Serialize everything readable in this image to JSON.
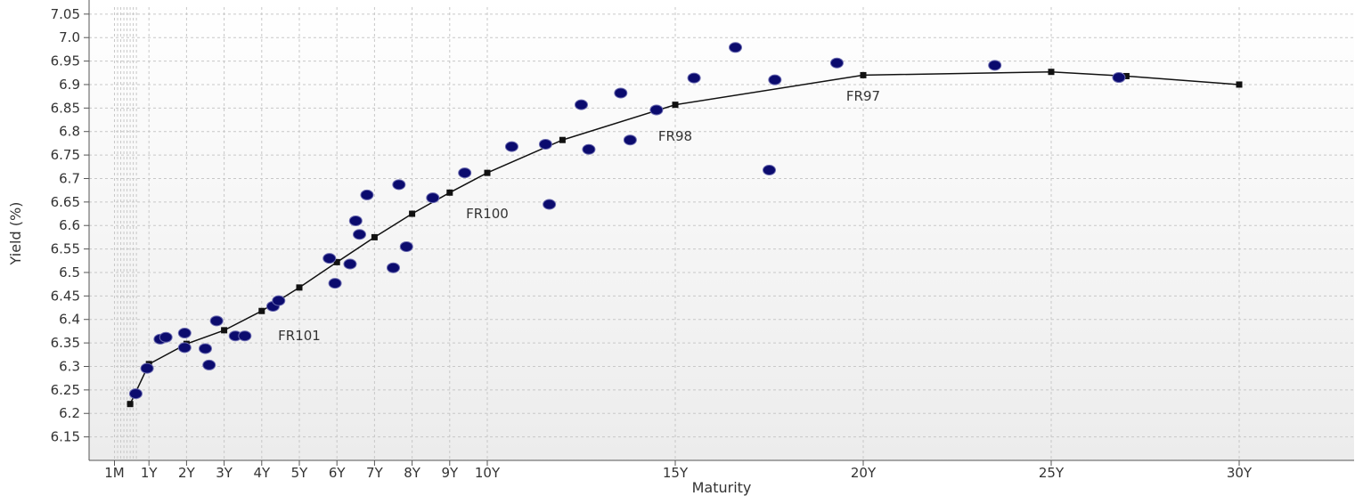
{
  "chart_data": {
    "type": "scatter",
    "xlabel": "Maturity",
    "ylabel": "Yield (%)",
    "x_unit": "years",
    "xlim": [
      0,
      31
    ],
    "ylim": [
      6.1,
      7.08
    ],
    "x_ticks": [
      {
        "label": "1M",
        "value": 0.0833
      },
      {
        "label": "1Y",
        "value": 1
      },
      {
        "label": "2Y",
        "value": 2
      },
      {
        "label": "3Y",
        "value": 3
      },
      {
        "label": "4Y",
        "value": 4
      },
      {
        "label": "5Y",
        "value": 5
      },
      {
        "label": "6Y",
        "value": 6
      },
      {
        "label": "7Y",
        "value": 7
      },
      {
        "label": "8Y",
        "value": 8
      },
      {
        "label": "9Y",
        "value": 9
      },
      {
        "label": "10Y",
        "value": 10
      },
      {
        "label": "15Y",
        "value": 15
      },
      {
        "label": "20Y",
        "value": 20
      },
      {
        "label": "25Y",
        "value": 25
      },
      {
        "label": "30Y",
        "value": 30
      }
    ],
    "y_ticks": [
      {
        "label": "6.15",
        "value": 6.15
      },
      {
        "label": "6.2",
        "value": 6.2
      },
      {
        "label": "6.25",
        "value": 6.25
      },
      {
        "label": "6.3",
        "value": 6.3
      },
      {
        "label": "6.35",
        "value": 6.35
      },
      {
        "label": "6.4",
        "value": 6.4
      },
      {
        "label": "6.45",
        "value": 6.45
      },
      {
        "label": "6.5",
        "value": 6.5
      },
      {
        "label": "6.55",
        "value": 6.55
      },
      {
        "label": "6.6",
        "value": 6.6
      },
      {
        "label": "6.65",
        "value": 6.65
      },
      {
        "label": "6.7",
        "value": 6.7
      },
      {
        "label": "6.75",
        "value": 6.75
      },
      {
        "label": "6.8",
        "value": 6.8
      },
      {
        "label": "6.85",
        "value": 6.85
      },
      {
        "label": "6.9",
        "value": 6.9
      },
      {
        "label": "6.95",
        "value": 6.95
      },
      {
        "label": "7.0",
        "value": 7.0
      },
      {
        "label": "7.05",
        "value": 7.05
      }
    ],
    "minor_x_gridlines": [
      0.0833,
      0.1667,
      0.25,
      0.3333,
      0.4167,
      0.5,
      0.5833,
      0.6667
    ],
    "grid": true,
    "legend": "none",
    "colors": {
      "points": "#0b0b6e",
      "curve": "#111111",
      "grid": "#c8c8c8",
      "background_top": "#ffffff",
      "background_bottom": "#ececec"
    },
    "series": [
      {
        "type": "scatter",
        "points": [
          {
            "x": 0.65,
            "y": 6.242
          },
          {
            "x": 0.95,
            "y": 6.296
          },
          {
            "x": 1.3,
            "y": 6.358
          },
          {
            "x": 1.45,
            "y": 6.362
          },
          {
            "x": 1.95,
            "y": 6.371
          },
          {
            "x": 1.95,
            "y": 6.34
          },
          {
            "x": 2.5,
            "y": 6.338
          },
          {
            "x": 2.6,
            "y": 6.303
          },
          {
            "x": 2.8,
            "y": 6.397
          },
          {
            "x": 3.3,
            "y": 6.365
          },
          {
            "x": 3.55,
            "y": 6.365
          },
          {
            "x": 4.3,
            "y": 6.428
          },
          {
            "x": 4.45,
            "y": 6.44
          },
          {
            "x": 5.8,
            "y": 6.53
          },
          {
            "x": 5.95,
            "y": 6.477
          },
          {
            "x": 6.35,
            "y": 6.518
          },
          {
            "x": 6.5,
            "y": 6.61
          },
          {
            "x": 6.6,
            "y": 6.581
          },
          {
            "x": 6.8,
            "y": 6.665
          },
          {
            "x": 7.5,
            "y": 6.51
          },
          {
            "x": 7.65,
            "y": 6.687
          },
          {
            "x": 7.85,
            "y": 6.555
          },
          {
            "x": 8.55,
            "y": 6.659
          },
          {
            "x": 9.4,
            "y": 6.712
          },
          {
            "x": 10.65,
            "y": 6.768
          },
          {
            "x": 11.55,
            "y": 6.773
          },
          {
            "x": 11.65,
            "y": 6.645
          },
          {
            "x": 12.5,
            "y": 6.857
          },
          {
            "x": 12.7,
            "y": 6.762
          },
          {
            "x": 13.55,
            "y": 6.882
          },
          {
            "x": 13.8,
            "y": 6.782
          },
          {
            "x": 14.5,
            "y": 6.846
          },
          {
            "x": 15.5,
            "y": 6.914
          },
          {
            "x": 16.6,
            "y": 6.979
          },
          {
            "x": 17.5,
            "y": 6.718
          },
          {
            "x": 17.65,
            "y": 6.91
          },
          {
            "x": 19.3,
            "y": 6.946
          },
          {
            "x": 23.5,
            "y": 6.941
          },
          {
            "x": 26.8,
            "y": 6.915
          }
        ]
      },
      {
        "type": "line",
        "points": [
          {
            "x": 0.5,
            "y": 6.22
          },
          {
            "x": 1,
            "y": 6.305
          },
          {
            "x": 2,
            "y": 6.348
          },
          {
            "x": 3,
            "y": 6.377
          },
          {
            "x": 4,
            "y": 6.418
          },
          {
            "x": 5,
            "y": 6.468
          },
          {
            "x": 6,
            "y": 6.522
          },
          {
            "x": 7,
            "y": 6.575
          },
          {
            "x": 8,
            "y": 6.625
          },
          {
            "x": 9,
            "y": 6.67
          },
          {
            "x": 10,
            "y": 6.712
          },
          {
            "x": 12,
            "y": 6.782
          },
          {
            "x": 15,
            "y": 6.857
          },
          {
            "x": 20,
            "y": 6.92
          },
          {
            "x": 25,
            "y": 6.927
          },
          {
            "x": 27,
            "y": 6.918
          },
          {
            "x": 30,
            "y": 6.9
          }
        ]
      }
    ],
    "annotations": [
      {
        "text": "FR101",
        "x": 5.0,
        "y": 6.365
      },
      {
        "text": "FR100",
        "x": 10.0,
        "y": 6.625
      },
      {
        "text": "FR98",
        "x": 15.0,
        "y": 6.79
      },
      {
        "text": "FR97",
        "x": 20.0,
        "y": 6.875
      }
    ]
  }
}
